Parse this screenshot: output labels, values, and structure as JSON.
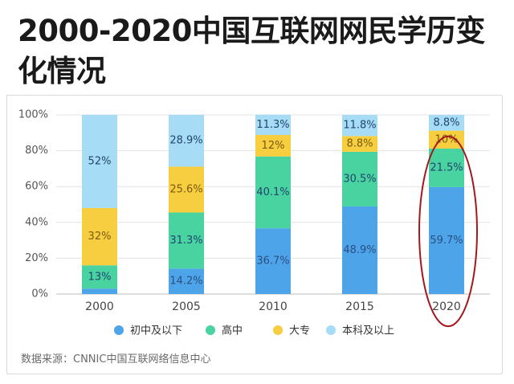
{
  "title_line1": "2000-2020中国互联网网民学历变",
  "title_line2": "化情况",
  "source": "数据来源：CNNIC中国互联网络信息中心",
  "watermark": "",
  "chart_data": {
    "type": "bar",
    "stacked": true,
    "percent_stacked": true,
    "title": "2000-2020中国互联网网民学历变化情况",
    "categories": [
      "2000",
      "2005",
      "2010",
      "2015",
      "2020"
    ],
    "series": [
      {
        "name": "初中及以下",
        "color": "#4ea4e9",
        "values": [
          3,
          14.2,
          36.7,
          48.9,
          59.7
        ],
        "labels": [
          "",
          "14.2%",
          "36.7%",
          "48.9%",
          "59.7%"
        ]
      },
      {
        "name": "高中",
        "color": "#48d3a1",
        "values": [
          13,
          31.3,
          40.1,
          30.5,
          21.5
        ],
        "labels": [
          "13%",
          "31.3%",
          "40.1%",
          "30.5%",
          "21.5%"
        ]
      },
      {
        "name": "大专",
        "color": "#f6ce3f",
        "values": [
          32,
          25.6,
          12,
          8.8,
          10
        ],
        "labels": [
          "32%",
          "25.6%",
          "12%",
          "8.8%",
          "10%"
        ]
      },
      {
        "name": "本科及以上",
        "color": "#a6dcf5",
        "values": [
          52,
          28.9,
          11.3,
          11.8,
          8.8
        ],
        "labels": [
          "52%",
          "28.9%",
          "11.3%",
          "11.8%",
          "8.8%"
        ]
      }
    ],
    "yticks": [
      "0%",
      "20%",
      "40%",
      "60%",
      "80%",
      "100%"
    ],
    "ylim": [
      0,
      100
    ],
    "grid": true,
    "legend": "bottom",
    "annotation": {
      "type": "ellipse",
      "category": "2020",
      "color": "#a3181c"
    }
  }
}
